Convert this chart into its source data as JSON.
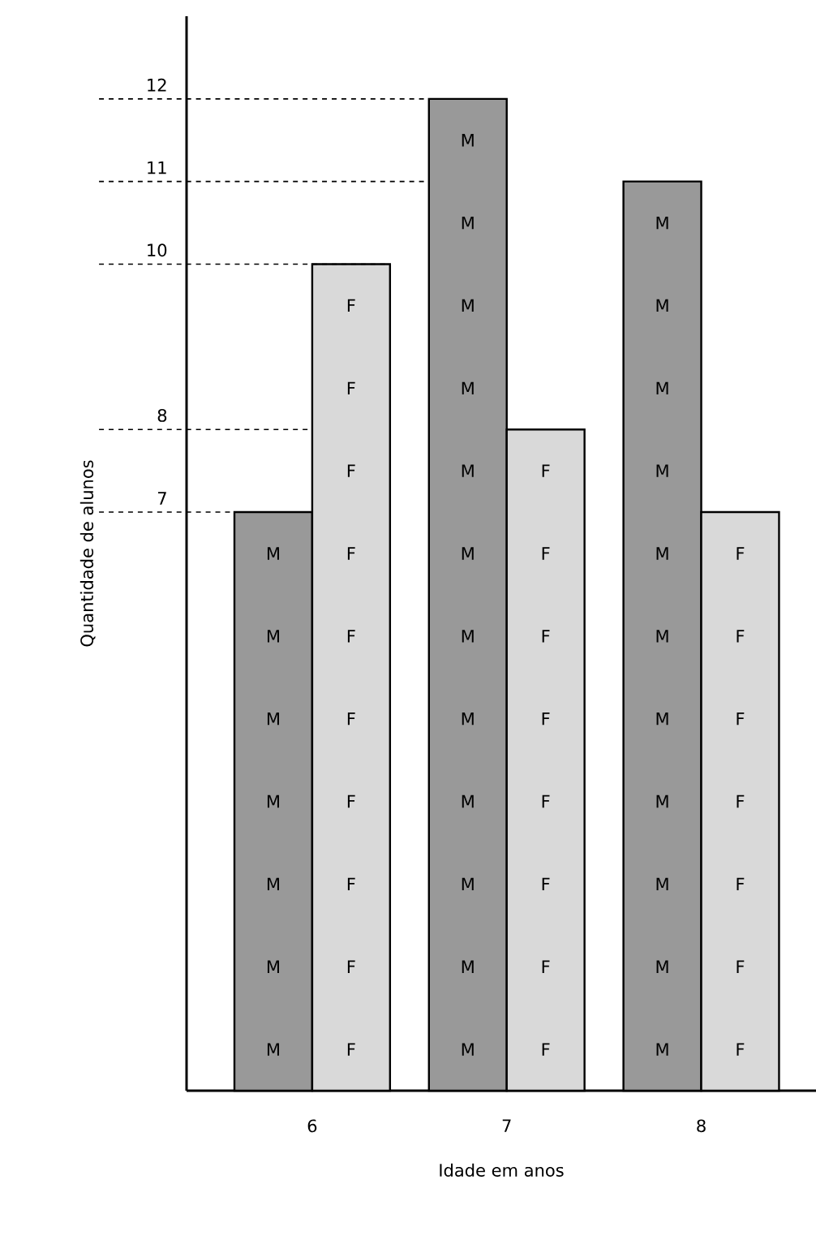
{
  "chart_data": {
    "type": "bar",
    "xlabel": "Idade em anos",
    "ylabel": "Quantidade de alunos",
    "categories": [
      "6",
      "7",
      "8"
    ],
    "series": [
      {
        "name": "M",
        "color": "#999999",
        "values": [
          7,
          12,
          11
        ]
      },
      {
        "name": "F",
        "color": "#d9d9d9",
        "values": [
          10,
          8,
          7
        ]
      }
    ],
    "ylim": [
      0,
      13
    ],
    "yticks": [
      7,
      8,
      10,
      11,
      12
    ],
    "ref_lines": [
      {
        "axis": "y",
        "value": 7,
        "line_style": "dashed"
      },
      {
        "axis": "y",
        "value": 8,
        "line_style": "dashed"
      },
      {
        "axis": "y",
        "value": 10,
        "line_style": "dashed"
      },
      {
        "axis": "y",
        "value": 11,
        "line_style": "dashed"
      },
      {
        "axis": "y",
        "value": 12,
        "line_style": "dashed"
      }
    ]
  }
}
